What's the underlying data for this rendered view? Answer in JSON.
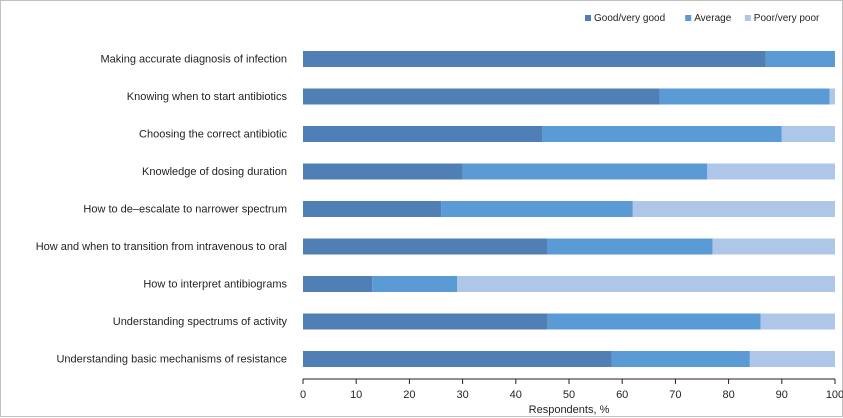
{
  "chart_data": {
    "type": "bar",
    "orientation": "horizontal",
    "stacked": true,
    "xlabel": "Respondents, %",
    "xlim": [
      0,
      100
    ],
    "xticks": [
      0,
      10,
      20,
      30,
      40,
      50,
      60,
      70,
      80,
      90,
      100
    ],
    "grid": false,
    "legend_position": "top-right",
    "categories": [
      "Making accurate diagnosis of infection",
      "Knowing when to start antibiotics",
      "Choosing the correct antibiotic",
      "Knowledge of dosing duration",
      "How to de–escalate to narrower spectrum",
      "How and when to transition from intravenous to oral",
      "How to interpret antibiograms",
      "Understanding spectrums of activity",
      "Understanding basic mechanisms of resistance"
    ],
    "series": [
      {
        "name": "Good/very good",
        "color": "#4f7fb4",
        "values": [
          87,
          67,
          45,
          30,
          26,
          46,
          13,
          46,
          58
        ]
      },
      {
        "name": "Average",
        "color": "#5b9bd5",
        "values": [
          13,
          32,
          45,
          46,
          36,
          31,
          16,
          40,
          26
        ]
      },
      {
        "name": "Poor/very poor",
        "color": "#aec7e8",
        "values": [
          0,
          1,
          10,
          24,
          38,
          23,
          71,
          14,
          16
        ]
      }
    ]
  }
}
